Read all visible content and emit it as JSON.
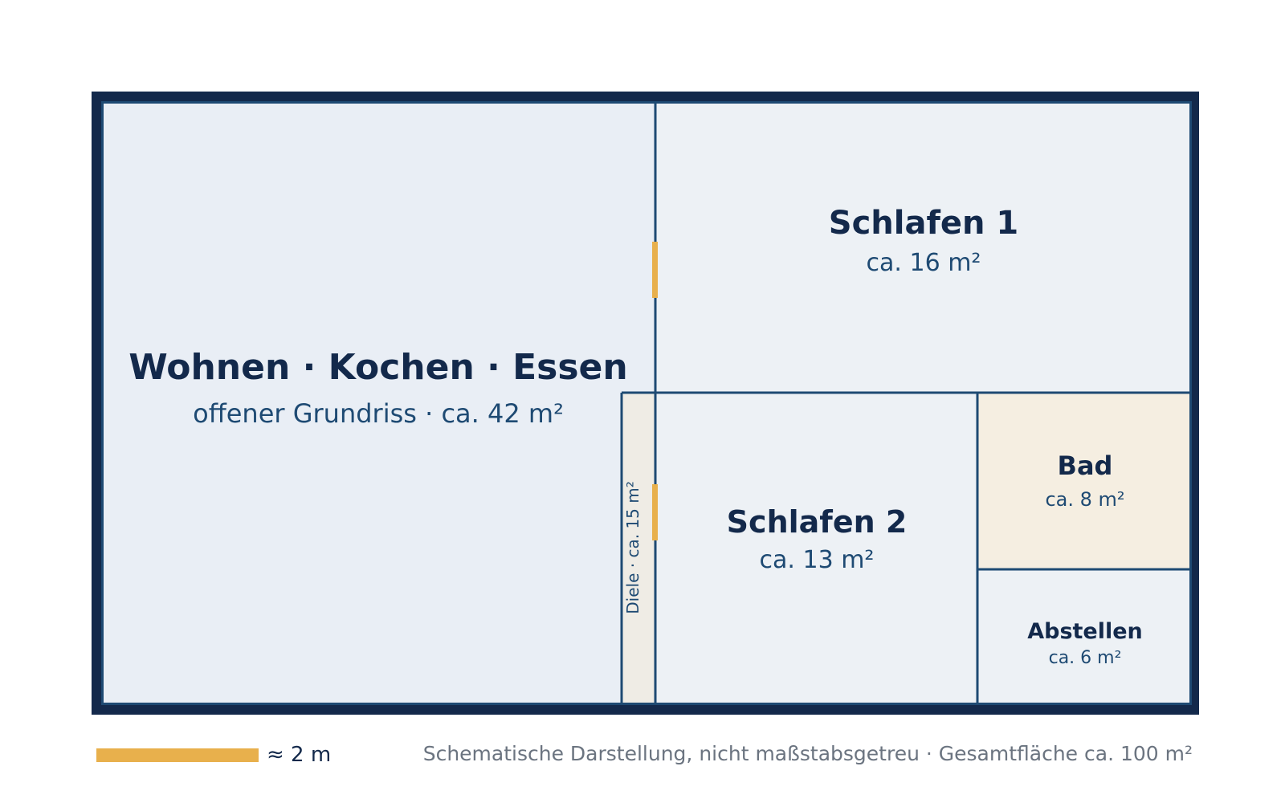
{
  "colors": {
    "outer_wall": "#13294b",
    "inner_wall": "#1e4a73",
    "room_fill": "#e9eef5",
    "bedroom_fill": "#edf1f5",
    "hall_fill": "#efece5",
    "bath_fill": "#f5eee1",
    "door_accent": "#e8b04c",
    "text_dark": "#13294b",
    "text_mid": "#1e4a73",
    "text_note": "#6b7480"
  },
  "rooms": {
    "wohnen": {
      "name": "Wohnen · Kochen · Essen",
      "area": "offener Grundriss · ca. 42 m²"
    },
    "schlafen1": {
      "name": "Schlafen 1",
      "area": "ca. 16 m²"
    },
    "schlafen2": {
      "name": "Schlafen 2",
      "area": "ca. 13 m²"
    },
    "bad": {
      "name": "Bad",
      "area": "ca. 8 m²"
    },
    "abstellen": {
      "name": "Abstellen",
      "area": "ca. 6 m²"
    },
    "diele": {
      "label": "Diele · ca. 15 m²"
    }
  },
  "legend": {
    "scale_label": "≈ 2 m",
    "note": "Schematische Darstellung, nicht maßstabsgetreu · Gesamtfläche ca. 100 m²"
  }
}
